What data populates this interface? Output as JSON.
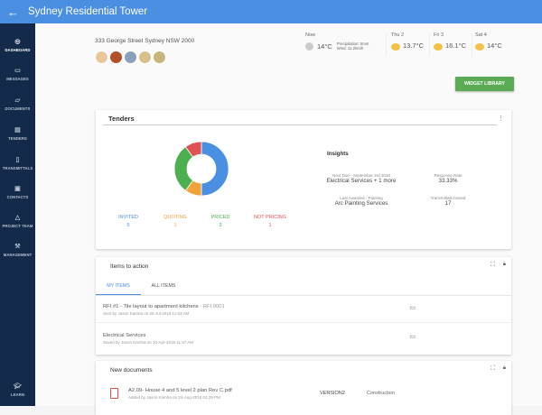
{
  "header": {
    "title": "Sydney Residential Tower"
  },
  "sidebar": {
    "items": [
      {
        "label": "DASHBOARD",
        "icon": "dashboard-icon",
        "active": true
      },
      {
        "label": "MESSAGES",
        "icon": "message-icon"
      },
      {
        "label": "DOCUMENTS",
        "icon": "folder-icon"
      },
      {
        "label": "TENDERS",
        "icon": "tenders-icon"
      },
      {
        "label": "TRANSMITTALS",
        "icon": "transmittal-icon"
      },
      {
        "label": "CONTACTS",
        "icon": "contacts-icon"
      },
      {
        "label": "PROJECT TEAM",
        "icon": "team-icon"
      },
      {
        "label": "MANAGEMENT",
        "icon": "management-icon"
      }
    ],
    "learn": "LEARN"
  },
  "project": {
    "address": "333 George Street Sydney NSW 2000"
  },
  "weather": {
    "now": {
      "label": "Now",
      "temp": "14°C",
      "precip": "Precipitation: 0mm",
      "wind": "Wind: 11.2km/h"
    },
    "forecast": [
      {
        "day": "Thu 2",
        "temp": "13.7°C"
      },
      {
        "day": "Fri 3",
        "temp": "16.1°C"
      },
      {
        "day": "Sat 4",
        "temp": "14°C"
      }
    ]
  },
  "widget_library": "WIDGET LIBRARY",
  "tenders": {
    "title": "Tenders",
    "legend": [
      {
        "label": "INVITED",
        "value": 5,
        "color": "#4a90e2"
      },
      {
        "label": "QUOTING",
        "value": 1,
        "color": "#f0a33a"
      },
      {
        "label": "PRICED",
        "value": 3,
        "color": "#4caf50"
      },
      {
        "label": "NOT PRICING",
        "value": 1,
        "color": "#e05252"
      }
    ],
    "insights": {
      "title": "Insights",
      "next_due_label": "Next Due - September 3rd 2018",
      "next_due": "Electrical Services + 1 more",
      "response_label": "Response Rate",
      "response": "33.33%",
      "awarded_label": "Last Awarded - Painting",
      "awarded": "Arc Painting Services",
      "transmittals_label": "Transmittals Issued",
      "transmittals": "17"
    }
  },
  "items": {
    "title": "Items to action",
    "tabs": [
      "MY ITEMS",
      "ALL ITEMS"
    ],
    "rows": [
      {
        "title": "RFI #1 - Tile layout to apartment kitchens",
        "ref": " - RFI.0001",
        "sub": "Sent by Jason Kamha on 25-Jul-2018 11:53 AM"
      },
      {
        "title": "Electrical Services",
        "ref": "",
        "sub": "Saved by Jason Kamha on 10-Apr-2018 11:47 AM"
      }
    ]
  },
  "docs": {
    "title": "New documents",
    "rows": [
      {
        "name": "A2.09- House 4 and 5 level 2 plan Rev C.pdf",
        "sub": "Added by Jason Kamha on 24-Aug-2018 03:29 PM",
        "version": "VERSION2",
        "status": "Construction"
      }
    ]
  }
}
